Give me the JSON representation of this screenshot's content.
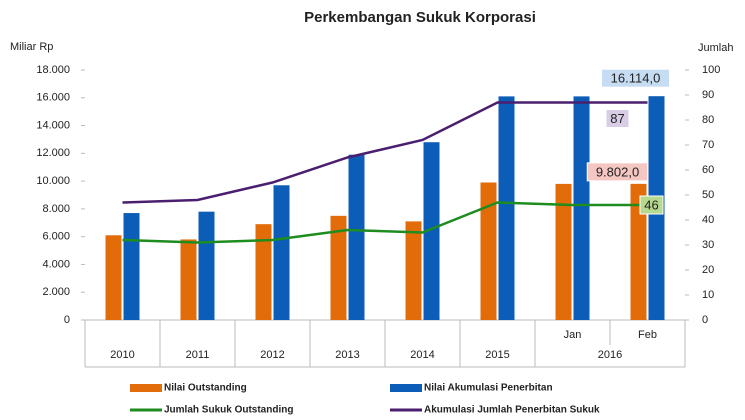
{
  "chart_data": {
    "type": "combo",
    "title": "Perkembangan Sukuk Korporasi",
    "y_label": "Miliar Rp",
    "y2_label": "Jumlah",
    "categories": [
      "2010",
      "2011",
      "2012",
      "2013",
      "2014",
      "2015",
      "Jan",
      "Feb"
    ],
    "category_groups": [
      {
        "label": "2016",
        "start": 6,
        "end": 7
      }
    ],
    "ylim": [
      0,
      18000
    ],
    "yticks": [
      {
        "value": 0,
        "label": "0"
      },
      {
        "value": 2000,
        "label": "2.000"
      },
      {
        "value": 4000,
        "label": "4.000"
      },
      {
        "value": 6000,
        "label": "6.000"
      },
      {
        "value": 8000,
        "label": "8.000"
      },
      {
        "value": 10000,
        "label": "10.000"
      },
      {
        "value": 12000,
        "label": "12.000"
      },
      {
        "value": 14000,
        "label": "14.000"
      },
      {
        "value": 16000,
        "label": "16.000"
      },
      {
        "value": 18000,
        "label": "18.000"
      }
    ],
    "y2lim": [
      0,
      100
    ],
    "y2ticks": [
      0,
      10,
      20,
      30,
      40,
      50,
      60,
      70,
      80,
      90,
      100
    ],
    "series": [
      {
        "name": "Nilai Outstanding",
        "type": "bar",
        "color": "#e36c0a",
        "values": [
          6100,
          5800,
          6900,
          7500,
          7100,
          9900,
          9800,
          9802
        ],
        "value_labels": [
          null,
          null,
          null,
          null,
          null,
          null,
          null,
          "9.802,0"
        ]
      },
      {
        "name": "Nilai Akumulasi Penerbitan",
        "type": "bar",
        "color": "#0b5db8",
        "values": [
          7700,
          7800,
          9700,
          11900,
          12800,
          16100,
          16100,
          16114
        ],
        "value_labels": [
          null,
          null,
          null,
          null,
          null,
          null,
          null,
          "16.114,0"
        ]
      },
      {
        "name": "Jumlah Sukuk Outstanding",
        "type": "line",
        "axis": "y2",
        "color": "#1e8c1e",
        "values": [
          32,
          31,
          32,
          36,
          35,
          47,
          46,
          46
        ],
        "value_labels": [
          null,
          null,
          null,
          null,
          null,
          null,
          null,
          "46"
        ]
      },
      {
        "name": "Akumulasi Jumlah Penerbitan Sukuk",
        "type": "line",
        "axis": "y2",
        "color": "#4b1f6f",
        "values": [
          47,
          48,
          55,
          65,
          72,
          87,
          87,
          87
        ],
        "value_labels": [
          null,
          null,
          null,
          null,
          null,
          null,
          null,
          "87"
        ]
      }
    ]
  }
}
